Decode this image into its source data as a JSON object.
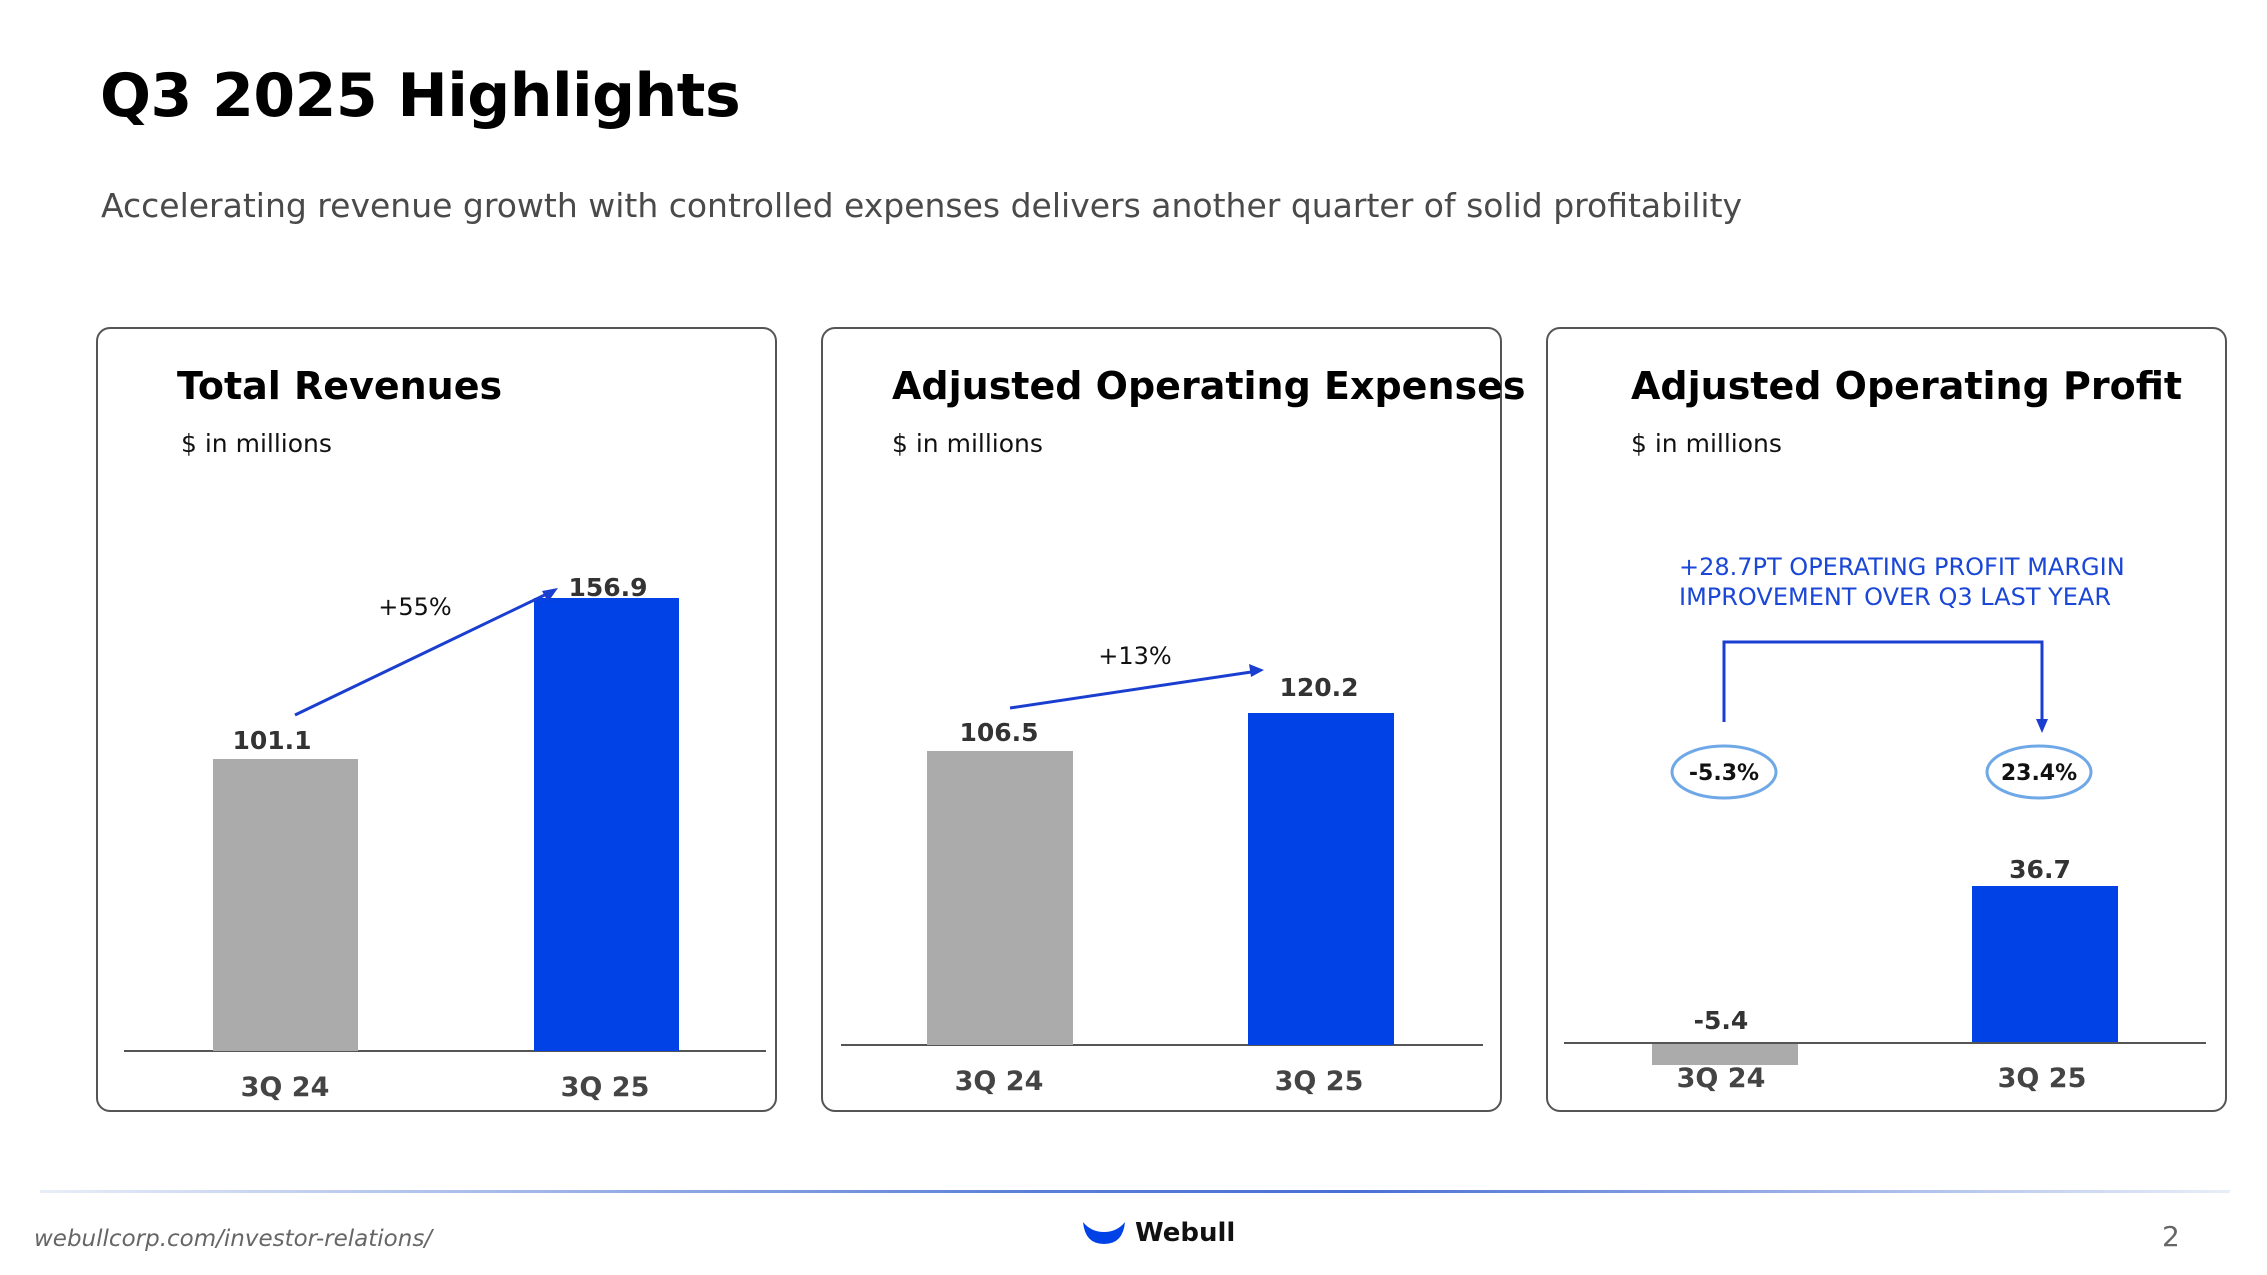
{
  "page": {
    "title": "Q3 2025 Highlights",
    "subtitle": "Accelerating revenue growth with controlled expenses delivers another quarter of solid profitability",
    "footer_url": "webullcorp.com/investor-relations/",
    "logo_text": "Webull",
    "page_number": "2"
  },
  "colors": {
    "prior": "#ababab",
    "current": "#0042e6",
    "accent_text": "#1a47d6",
    "axis": "#555555"
  },
  "chart_data": [
    {
      "type": "bar",
      "title": "Total Revenues",
      "unit": "$ in millions",
      "categories": [
        "3Q 24",
        "3Q 25"
      ],
      "values": [
        101.1,
        156.9
      ],
      "value_labels": [
        "101.1",
        "156.9"
      ],
      "change_label": "+55%",
      "ylim": [
        0,
        165
      ]
    },
    {
      "type": "bar",
      "title": "Adjusted Operating Expenses",
      "unit": "$ in millions",
      "categories": [
        "3Q 24",
        "3Q 25"
      ],
      "values": [
        106.5,
        120.2
      ],
      "value_labels": [
        "106.5",
        "120.2"
      ],
      "change_label": "+13%",
      "ylim": [
        0,
        165
      ]
    },
    {
      "type": "bar",
      "title": "Adjusted Operating Profit",
      "unit": "$ in millions",
      "categories": [
        "3Q 24",
        "3Q 25"
      ],
      "values": [
        -5.4,
        36.7
      ],
      "value_labels": [
        "-5.4",
        "36.7"
      ],
      "margins": [
        "-5.3%",
        "23.4%"
      ],
      "annotation": [
        "+28.7PT OPERATING PROFIT MARGIN",
        "IMPROVEMENT OVER Q3 LAST YEAR"
      ],
      "ylim": [
        -5.4,
        165
      ]
    }
  ]
}
